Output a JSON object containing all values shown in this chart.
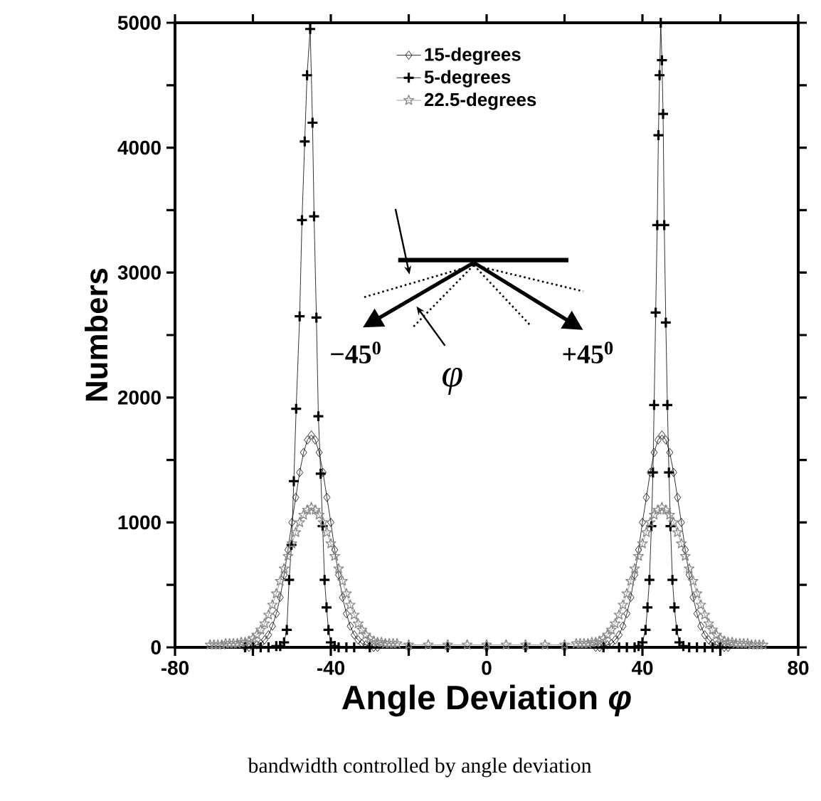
{
  "chart_data": {
    "type": "line",
    "xlabel": "Angle Deviation *φ*",
    "ylabel": "Numbers",
    "xlim": [
      -80,
      80
    ],
    "ylim": [
      0,
      5000
    ],
    "xticks": [
      -80,
      {
        "value": -60,
        "label": null
      },
      -40,
      {
        "value": -20,
        "label": null
      },
      0,
      {
        "value": 20,
        "label": null
      },
      40,
      {
        "value": 60,
        "label": null
      },
      80
    ],
    "yticks": [
      0,
      {
        "value": 500,
        "label": null
      },
      1000,
      {
        "value": 1500,
        "label": null
      },
      2000,
      {
        "value": 2500,
        "label": null
      },
      3000,
      {
        "value": 3500,
        "label": null
      },
      4000,
      {
        "value": 4500,
        "label": null
      },
      5000
    ],
    "legend": "top",
    "line_style": "solid",
    "grid": false,
    "annotations": [
      "−45$^{0}$",
      "+45$^{0}$",
      "φ",
      "bandwidth controlled by angle deviation"
    ],
    "series": [
      {
        "name": "15-degrees",
        "color": "#000000",
        "marker": "diamond",
        "x": [
          -62,
          -61,
          -60,
          -59,
          -58,
          -57,
          -56,
          -55,
          -54,
          -53,
          -52,
          -51,
          -50,
          -49,
          -48,
          -47,
          -46,
          -45,
          -44,
          -43,
          -42,
          -41,
          -40,
          -39,
          -38,
          -37,
          -36,
          -35,
          -34,
          -33,
          -32,
          -31,
          -30,
          -29,
          -28,
          -20,
          -10,
          0,
          10,
          20,
          28,
          29,
          30,
          31,
          32,
          33,
          34,
          35,
          36,
          37,
          38,
          39,
          40,
          41,
          42,
          43,
          44,
          45,
          46,
          47,
          48,
          49,
          50,
          51,
          52,
          53,
          54,
          55,
          56,
          57,
          58,
          59,
          60,
          61,
          62
        ],
        "values": [
          0,
          0,
          10,
          20,
          30,
          60,
          100,
          170,
          270,
          400,
          580,
          780,
          1000,
          1200,
          1400,
          1560,
          1660,
          1700,
          1660,
          1560,
          1400,
          1200,
          1000,
          780,
          580,
          400,
          270,
          170,
          100,
          60,
          30,
          20,
          10,
          0,
          0,
          0,
          0,
          0,
          0,
          0,
          0,
          0,
          10,
          20,
          30,
          60,
          100,
          170,
          270,
          400,
          580,
          780,
          1000,
          1200,
          1400,
          1560,
          1660,
          1700,
          1660,
          1560,
          1400,
          1200,
          1000,
          780,
          580,
          400,
          270,
          170,
          100,
          60,
          30,
          20,
          10,
          0,
          0
        ]
      },
      {
        "name": "5-degrees",
        "color": "#000000",
        "marker": "cross",
        "x": [
          -62,
          -60,
          -58,
          -56,
          -54,
          -53,
          -52,
          -51.3,
          -50.7,
          -50.1,
          -49.5,
          -48.9,
          -48,
          -47.4,
          -46.7,
          -46.1,
          -45.3,
          -44.7,
          -44.3,
          -43.7,
          -43.2,
          -42.6,
          -42.1,
          -41.6,
          -41.1,
          -40.6,
          -40,
          -39,
          -38,
          -36,
          -34,
          -30,
          -20,
          -10,
          0,
          10,
          20,
          30,
          34,
          36,
          38,
          39,
          40,
          40.8,
          41.3,
          41.8,
          42.3,
          42.7,
          43,
          43.4,
          43.8,
          44.1,
          44.4,
          44.7,
          45,
          45.3,
          45.6,
          46,
          46.4,
          46.8,
          47.2,
          47.7,
          48.2,
          48.8,
          49.5,
          50.5,
          52,
          54,
          56,
          58,
          60
        ],
        "values": [
          0,
          0,
          0,
          0,
          10,
          10,
          40,
          140,
          540,
          820,
          1330,
          1910,
          2650,
          3420,
          4050,
          4580,
          4950,
          4200,
          3450,
          2640,
          1850,
          1390,
          970,
          540,
          320,
          140,
          40,
          10,
          0,
          0,
          0,
          0,
          0,
          0,
          0,
          0,
          0,
          0,
          0,
          0,
          0,
          10,
          40,
          140,
          320,
          540,
          970,
          1400,
          1940,
          2680,
          3380,
          4100,
          4580,
          5000,
          4700,
          4270,
          3380,
          2600,
          1940,
          1400,
          970,
          540,
          320,
          140,
          40,
          10,
          0,
          0,
          0,
          0,
          0
        ]
      },
      {
        "name": "22.5-degrees",
        "color": "#888888",
        "marker": "star",
        "x": [
          -71,
          -70,
          -69,
          -68,
          -67,
          -66,
          -65,
          -64,
          -63,
          -62,
          -61,
          -60,
          -59,
          -58,
          -57,
          -56,
          -55,
          -54,
          -53,
          -52,
          -51,
          -50,
          -49,
          -48,
          -47,
          -46,
          -45,
          -44,
          -43,
          -42,
          -41,
          -40,
          -39,
          -38,
          -37,
          -36,
          -35,
          -34,
          -33,
          -32,
          -31,
          -30,
          -29,
          -28,
          -27,
          -26,
          -25,
          -24,
          -23,
          -20,
          -15,
          -10,
          -5,
          0,
          5,
          10,
          15,
          20,
          23,
          24,
          25,
          26,
          27,
          28,
          29,
          30,
          31,
          32,
          33,
          34,
          35,
          36,
          37,
          38,
          39,
          40,
          41,
          42,
          43,
          44,
          45,
          46,
          47,
          48,
          49,
          50,
          51,
          52,
          53,
          54,
          55,
          56,
          57,
          58,
          59,
          60,
          61,
          62,
          63,
          64,
          65,
          66,
          67,
          68,
          69,
          70,
          71
        ],
        "values": [
          20,
          20,
          20,
          20,
          30,
          30,
          30,
          30,
          40,
          40,
          50,
          70,
          100,
          140,
          190,
          260,
          340,
          430,
          530,
          630,
          730,
          830,
          920,
          1000,
          1060,
          1100,
          1120,
          1100,
          1060,
          1000,
          920,
          830,
          730,
          630,
          530,
          430,
          340,
          260,
          190,
          140,
          100,
          70,
          50,
          40,
          40,
          30,
          30,
          30,
          30,
          20,
          20,
          20,
          20,
          20,
          20,
          20,
          20,
          20,
          30,
          30,
          30,
          30,
          40,
          40,
          50,
          70,
          100,
          140,
          190,
          260,
          340,
          430,
          530,
          630,
          730,
          830,
          920,
          1000,
          1060,
          1100,
          1120,
          1100,
          1060,
          1000,
          920,
          830,
          730,
          630,
          530,
          430,
          340,
          260,
          190,
          140,
          100,
          70,
          50,
          40,
          40,
          30,
          30,
          30,
          30,
          20,
          20,
          20,
          20
        ]
      }
    ]
  }
}
